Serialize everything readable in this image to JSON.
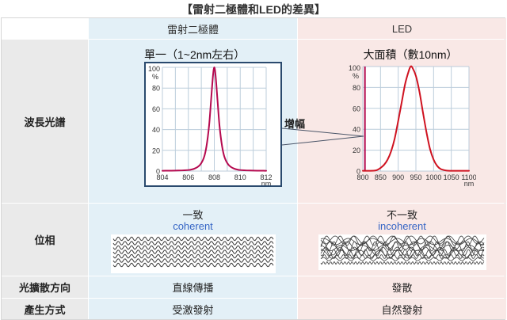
{
  "page_title": "【雷射二極體和LED的差異】",
  "annotation": {
    "amplify": "增幅"
  },
  "colors": {
    "laser_col_bg": "#e3f0f7",
    "led_col_bg": "#f9e8e6",
    "label_col_bg": "#eaeaea",
    "laser_curve": "#b5094f",
    "led_curve": "#cf1220",
    "coherent_text": "#3565c5",
    "grid": "#bccddb",
    "chart_box_border": "#2a4a6e",
    "connector": "#4a5568",
    "wave_stroke": "#3c3c3c"
  },
  "table": {
    "columns": {
      "laser": "雷射二極體",
      "led": "LED"
    },
    "rows": [
      {
        "label": "波長光譜"
      },
      {
        "label": "位相",
        "laser_line1": "一致",
        "laser_line2": "coherent",
        "led_line1": "不一致",
        "led_line2": "incoherent"
      },
      {
        "label": "光擴散方向",
        "laser": "直線傳播",
        "led": "發散"
      },
      {
        "label": "產生方式",
        "laser": "受激發射",
        "led": "自然發射"
      }
    ]
  },
  "chart_data": [
    {
      "type": "line",
      "id": "laser_spectrum",
      "title": "單一（1~2nm左右）",
      "xlabel": "nm",
      "ylabel": "%",
      "xlim": [
        804,
        812
      ],
      "ylim": [
        0,
        100
      ],
      "xticks": [
        804,
        806,
        808,
        810,
        812
      ],
      "yticks": [
        0,
        20,
        40,
        60,
        80,
        100
      ],
      "xgrid_step": 1,
      "ygrid_step": 20,
      "grid": true,
      "color": "#b5094f",
      "peak_nm": 808,
      "points": [
        [
          804,
          0.3
        ],
        [
          805,
          0.5
        ],
        [
          806,
          1
        ],
        [
          806.5,
          2.5
        ],
        [
          806.9,
          6
        ],
        [
          807.2,
          13
        ],
        [
          807.4,
          24
        ],
        [
          807.6,
          44
        ],
        [
          807.75,
          68
        ],
        [
          807.9,
          92
        ],
        [
          808,
          100
        ],
        [
          808.1,
          92
        ],
        [
          808.25,
          68
        ],
        [
          808.4,
          44
        ],
        [
          808.6,
          24
        ],
        [
          808.8,
          13
        ],
        [
          809.1,
          6
        ],
        [
          809.5,
          2.5
        ],
        [
          810,
          1
        ],
        [
          811,
          0.5
        ],
        [
          812,
          0.3
        ]
      ]
    },
    {
      "type": "line",
      "id": "led_spectrum",
      "title": "大面積（數10nm）",
      "xlabel": "nm",
      "ylabel": "%",
      "xlim": [
        800,
        1100
      ],
      "ylim": [
        0,
        100
      ],
      "xticks": [
        800,
        850,
        900,
        950,
        1000,
        1050,
        1100
      ],
      "yticks": [
        0,
        20,
        40,
        60,
        80,
        100
      ],
      "xgrid_step": 50,
      "ygrid_step": 20,
      "grid": true,
      "color": "#cf1220",
      "peak_nm": 935,
      "laser_line": {
        "x": 806,
        "from": 0,
        "to": 100,
        "color": "#b5094f"
      },
      "points": [
        [
          800,
          0.3
        ],
        [
          830,
          0.4
        ],
        [
          840,
          1
        ],
        [
          850,
          3
        ],
        [
          860,
          6
        ],
        [
          870,
          11
        ],
        [
          880,
          19
        ],
        [
          890,
          31
        ],
        [
          900,
          48
        ],
        [
          910,
          66
        ],
        [
          920,
          84
        ],
        [
          930,
          96
        ],
        [
          935,
          100
        ],
        [
          940,
          99
        ],
        [
          950,
          91
        ],
        [
          960,
          76
        ],
        [
          970,
          56
        ],
        [
          980,
          37
        ],
        [
          990,
          21
        ],
        [
          1000,
          11
        ],
        [
          1010,
          5
        ],
        [
          1020,
          2
        ],
        [
          1035,
          0.6
        ],
        [
          1050,
          0.3
        ],
        [
          1075,
          0.3
        ],
        [
          1100,
          0.3
        ]
      ]
    }
  ]
}
